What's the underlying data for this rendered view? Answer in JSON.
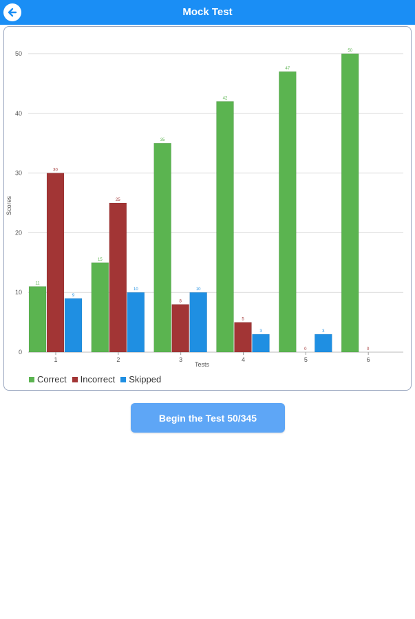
{
  "header": {
    "title": "Mock Test",
    "back_icon": "back-arrow-icon"
  },
  "colors": {
    "header": "#1a8ef5",
    "correct": "#5bb450",
    "incorrect": "#a23535",
    "skipped": "#1f8fe2",
    "button": "#5ea6f6"
  },
  "chart_data": {
    "type": "bar",
    "categories": [
      "1",
      "2",
      "3",
      "4",
      "5",
      "6"
    ],
    "series": [
      {
        "name": "Correct",
        "values": [
          11,
          15,
          35,
          42,
          47,
          50
        ]
      },
      {
        "name": "Incorrect",
        "values": [
          30,
          25,
          8,
          5,
          0,
          0
        ]
      },
      {
        "name": "Skipped",
        "values": [
          9,
          10,
          10,
          3,
          3,
          null
        ]
      }
    ],
    "xlabel": "Tests",
    "ylabel": "Scores",
    "ylim": [
      0,
      50
    ],
    "yticks": [
      0,
      10,
      20,
      30,
      40,
      50
    ],
    "grid": true,
    "legend_position": "bottom-left"
  },
  "button": {
    "label": "Begin the Test 50/345"
  }
}
